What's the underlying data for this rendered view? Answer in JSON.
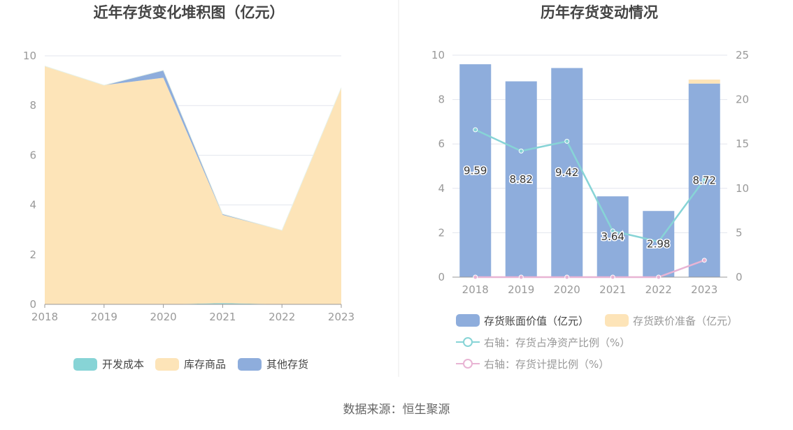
{
  "footer": "数据来源：恒生聚源",
  "chart_data": [
    {
      "type": "area",
      "stacked": true,
      "title": "近年存货变化堆积图（亿元）",
      "x": [
        "2018",
        "2019",
        "2020",
        "2021",
        "2022",
        "2023"
      ],
      "y_ticks": [
        "0",
        "2",
        "4",
        "6",
        "8",
        "10"
      ],
      "ylim": [
        0,
        10
      ],
      "series": [
        {
          "name": "开发成本",
          "color": "#87d4d6",
          "values": [
            0,
            0,
            0,
            0.05,
            0,
            0
          ]
        },
        {
          "name": "库存商品",
          "color": "#fde4b8",
          "values": [
            9.59,
            8.82,
            9.12,
            3.55,
            2.98,
            8.72
          ]
        },
        {
          "name": "其他存货",
          "color": "#8eaddc",
          "values": [
            0,
            0,
            0.3,
            0.04,
            0,
            0
          ]
        }
      ],
      "legend_position": "bottom",
      "grid": true
    },
    {
      "type": "bar",
      "stacked": true,
      "title": "历年存货变动情况",
      "categories": [
        "2018",
        "2019",
        "2020",
        "2021",
        "2022",
        "2023"
      ],
      "y_left_ticks": [
        "0",
        "2",
        "4",
        "6",
        "8",
        "10"
      ],
      "y_right_ticks": [
        "0",
        "5",
        "10",
        "15",
        "20",
        "25"
      ],
      "ylim_left": [
        0,
        10
      ],
      "ylim_right": [
        0,
        25
      ],
      "series": [
        {
          "name": "存货账面价值（亿元）",
          "color": "#8eaddc",
          "axis": "left",
          "values": [
            9.59,
            8.82,
            9.42,
            3.64,
            2.98,
            8.72
          ],
          "labels": [
            "9.59",
            "8.82",
            "9.42",
            "3.64",
            "2.98",
            "8.72"
          ]
        },
        {
          "name": "存货跌价准备（亿元）",
          "color": "#fde4b8",
          "axis": "left",
          "values": [
            0,
            0,
            0,
            0,
            0,
            0.18
          ]
        },
        {
          "name": "右轴：存货占净资产比例（%）",
          "type": "line",
          "color": "#87d4d6",
          "axis": "right",
          "values": [
            16.6,
            14.2,
            15.3,
            5.2,
            4.0,
            11.0
          ]
        },
        {
          "name": "右轴：存货计提比例（%）",
          "type": "line",
          "color": "#e8b4d4",
          "axis": "right",
          "values": [
            0,
            0,
            0,
            0,
            0,
            1.9
          ]
        }
      ],
      "legend_position": "bottom",
      "grid": true
    }
  ]
}
